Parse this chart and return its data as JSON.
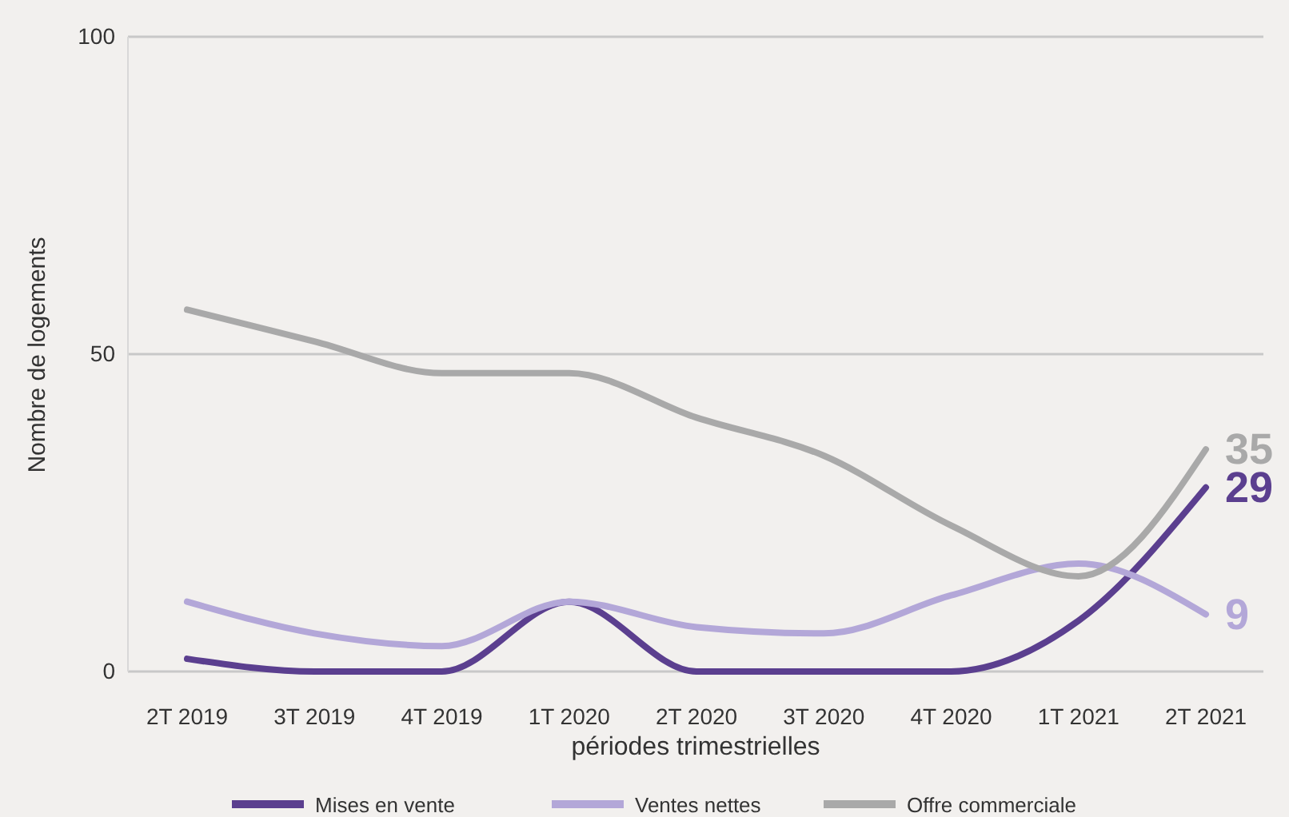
{
  "chart_data": {
    "type": "line",
    "xlabel": "périodes trimestrielles",
    "ylabel": "Nombre de logements",
    "categories": [
      "2T 2019",
      "3T 2019",
      "4T 2019",
      "1T 2020",
      "2T 2020",
      "3T 2020",
      "4T 2020",
      "1T 2021",
      "2T 2021"
    ],
    "series": [
      {
        "name": "Mises en vente",
        "color": "#5b3f8f",
        "values": [
          2,
          0,
          0,
          11,
          0,
          0,
          0,
          8,
          29
        ],
        "value_labels": [
          null,
          null,
          null,
          null,
          null,
          null,
          null,
          null,
          "29"
        ]
      },
      {
        "name": "Ventes nettes",
        "color": "#b3a7d8",
        "values": [
          11,
          6,
          4,
          11,
          7,
          6,
          12,
          17,
          9
        ],
        "value_labels": [
          null,
          null,
          null,
          null,
          null,
          null,
          null,
          null,
          "9"
        ]
      },
      {
        "name": "Offre commerciale",
        "color": "#a9a9a9",
        "values": [
          57,
          52,
          47,
          47,
          40,
          34,
          23,
          15,
          35
        ],
        "value_labels": [
          null,
          null,
          null,
          null,
          null,
          null,
          null,
          null,
          "35"
        ]
      }
    ],
    "ylim": [
      0,
      100
    ],
    "yticks": [
      0,
      50,
      100
    ],
    "grid": "y",
    "legend": "bottom",
    "marker": "none",
    "line_style": "solid"
  }
}
